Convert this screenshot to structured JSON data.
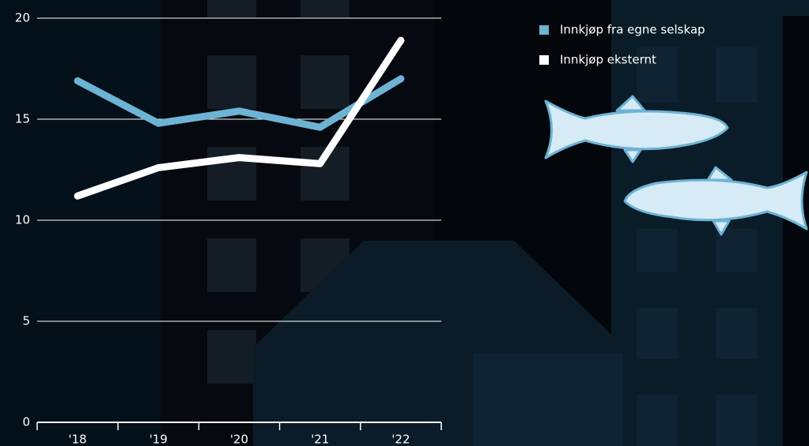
{
  "chart_data": {
    "type": "line",
    "categories": [
      "'18",
      "'19",
      "'20",
      "'21",
      "'22"
    ],
    "series": [
      {
        "name": "Innkjøp fra egne selskap",
        "color": "#6db3d4",
        "values": [
          16.9,
          14.8,
          15.4,
          14.6,
          17.0
        ]
      },
      {
        "name": "Innkjøp eksternt",
        "color": "#ffffff",
        "values": [
          11.2,
          12.6,
          13.1,
          12.8,
          18.9
        ]
      }
    ],
    "ylim": [
      0,
      20
    ],
    "yticks": [
      0,
      5,
      10,
      15,
      20
    ],
    "grid": true,
    "legend": "top-right"
  }
}
